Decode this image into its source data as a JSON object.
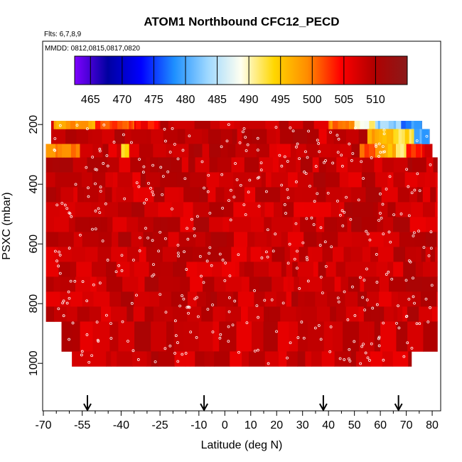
{
  "chart_data": {
    "type": "heatmap",
    "title": "ATOM1 Northbound CFC12_PECD",
    "subtitle_flights": "Flts: 6,7,8,9",
    "subtitle_dates": "MMDD: 0812,0815,0817,0820",
    "xlabel": "Latitude (deg N)",
    "ylabel": "PSXC (mbar)",
    "xlim": [
      -70,
      83
    ],
    "ylim": [
      1010,
      140
    ],
    "y_reversed": true,
    "x_ticks": [
      -70,
      -55,
      -40,
      -25,
      -10,
      0,
      10,
      20,
      30,
      40,
      50,
      60,
      70,
      80
    ],
    "x_tick_labels": [
      "-70",
      "-55",
      "-40",
      "-25",
      "-10",
      "0",
      "10",
      "20",
      "30",
      "40",
      "50",
      "60",
      "70",
      "80"
    ],
    "x_minor_ticks": [
      -65,
      -60,
      -50,
      -45,
      -35,
      -30,
      -20,
      -15,
      -5,
      5,
      15,
      25,
      35,
      45,
      55,
      65,
      75
    ],
    "y_ticks": [
      200,
      400,
      600,
      800,
      1000
    ],
    "y_tick_labels": [
      "200",
      "400",
      "600",
      "800",
      "1000"
    ],
    "colorbar": {
      "ticks": [
        465,
        470,
        475,
        480,
        485,
        490,
        495,
        500,
        505,
        510
      ],
      "range": [
        462.5,
        515
      ],
      "colors": [
        "#7f00ff",
        "#0000a0",
        "#0000ff",
        "#1e90ff",
        "#9ed8ff",
        "#fffff0",
        "#ffd700",
        "#ff8c00",
        "#ff0000",
        "#b00000",
        "#8b1a1a"
      ]
    },
    "bands": [
      {
        "p_top": 170,
        "p_bot": 215,
        "lat_min": -67,
        "lat_max": 76
      },
      {
        "p_top": 215,
        "p_bot": 265,
        "lat_min": -67,
        "lat_max": 79
      },
      {
        "p_top": 265,
        "p_bot": 310,
        "lat_min": -69,
        "lat_max": 80
      },
      {
        "p_top": 310,
        "p_bot": 860,
        "lat_min": -69,
        "lat_max": 82
      },
      {
        "p_top": 860,
        "p_bot": 960,
        "lat_min": -63,
        "lat_max": 82
      },
      {
        "p_top": 960,
        "p_bot": 1010,
        "lat_min": -59,
        "lat_max": 72
      }
    ],
    "profile_arrows_lat": [
      -53,
      -8,
      38,
      67
    ],
    "base_value": 508,
    "anomalies": [
      {
        "lat_min": -66,
        "lat_max": -50,
        "p_top": 170,
        "p_bot": 215,
        "value": 498
      },
      {
        "lat_min": -50,
        "lat_max": -35,
        "p_top": 170,
        "p_bot": 215,
        "value": 502
      },
      {
        "lat_min": -35,
        "lat_max": -25,
        "p_top": 170,
        "p_bot": 215,
        "value": 505
      },
      {
        "lat_min": 40,
        "lat_max": 50,
        "p_top": 170,
        "p_bot": 215,
        "value": 500
      },
      {
        "lat_min": 50,
        "lat_max": 58,
        "p_top": 170,
        "p_bot": 215,
        "value": 490
      },
      {
        "lat_min": 58,
        "lat_max": 68,
        "p_top": 170,
        "p_bot": 215,
        "value": 483
      },
      {
        "lat_min": 68,
        "lat_max": 76,
        "p_top": 170,
        "p_bot": 215,
        "value": 478
      },
      {
        "lat_min": 55,
        "lat_max": 65,
        "p_top": 215,
        "p_bot": 265,
        "value": 497
      },
      {
        "lat_min": 65,
        "lat_max": 73,
        "p_top": 215,
        "p_bot": 265,
        "value": 493
      },
      {
        "lat_min": 73,
        "lat_max": 79,
        "p_top": 215,
        "p_bot": 265,
        "value": 480
      },
      {
        "lat_min": -69,
        "lat_max": -56,
        "p_top": 265,
        "p_bot": 310,
        "value": 500
      },
      {
        "lat_min": -40,
        "lat_max": -37,
        "p_top": 265,
        "p_bot": 310,
        "value": 495
      },
      {
        "lat_min": 52,
        "lat_max": 58,
        "p_top": 265,
        "p_bot": 310,
        "value": 502
      },
      {
        "lat_min": 58,
        "lat_max": 66,
        "p_top": 265,
        "p_bot": 310,
        "value": 497
      },
      {
        "lat_min": 66,
        "lat_max": 70,
        "p_top": 265,
        "p_bot": 310,
        "value": 491
      },
      {
        "lat_min": 70,
        "lat_max": 76,
        "p_top": 265,
        "p_bot": 310,
        "value": 503
      }
    ]
  }
}
